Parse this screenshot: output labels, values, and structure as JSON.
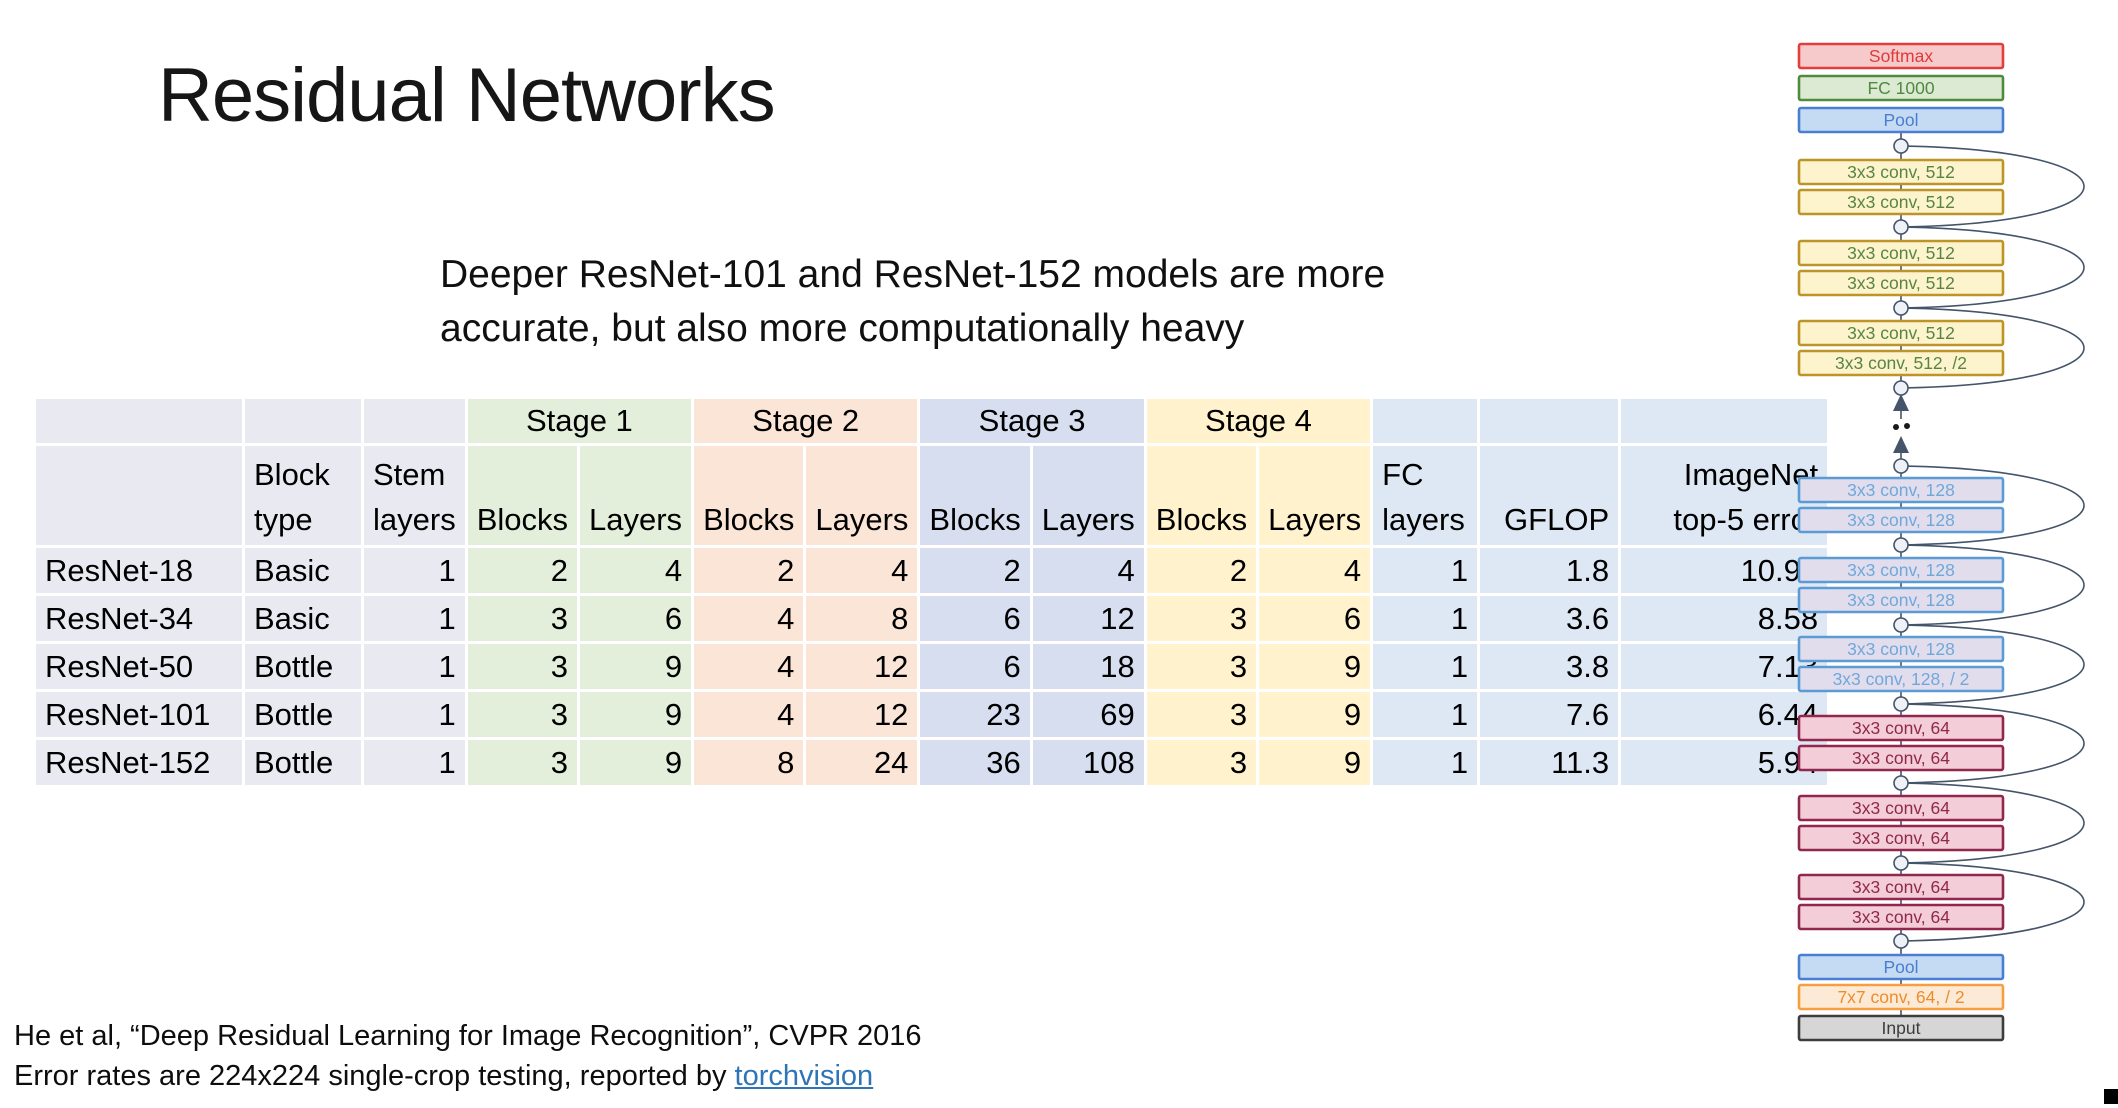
{
  "slide": {
    "title": "Residual Networks",
    "subtitle_line1": "Deeper ResNet-101 and ResNet-152 models are more",
    "subtitle_line2": "accurate, but also more computationally heavy",
    "footer_line1": "He et al, “Deep Residual Learning for Image Recognition”, CVPR 2016",
    "footer_line2_prefix": "Error rates are 224x224 single-crop testing, reported by ",
    "footer_link_label": "torchvision"
  },
  "table": {
    "stage_headers": [
      "Stage 1",
      "Stage 2",
      "Stage 3",
      "Stage 4"
    ],
    "column_headers": [
      "",
      "Block\ntype",
      "Stem\nlayers",
      "Blocks",
      "Layers",
      "Blocks",
      "Layers",
      "Blocks",
      "Layers",
      "Blocks",
      "Layers",
      "FC\nlayers",
      "GFLOP",
      "ImageNet\ntop-5 error"
    ],
    "rows": [
      [
        "ResNet-18",
        "Basic",
        "1",
        "2",
        "4",
        "2",
        "4",
        "2",
        "4",
        "2",
        "4",
        "1",
        "1.8",
        "10.92"
      ],
      [
        "ResNet-34",
        "Basic",
        "1",
        "3",
        "6",
        "4",
        "8",
        "6",
        "12",
        "3",
        "6",
        "1",
        "3.6",
        "8.58"
      ],
      [
        "ResNet-50",
        "Bottle",
        "1",
        "3",
        "9",
        "4",
        "12",
        "6",
        "18",
        "3",
        "9",
        "1",
        "3.8",
        "7.13"
      ],
      [
        "ResNet-101",
        "Bottle",
        "1",
        "3",
        "9",
        "4",
        "12",
        "23",
        "69",
        "3",
        "9",
        "1",
        "7.6",
        "6.44"
      ],
      [
        "ResNet-152",
        "Bottle",
        "1",
        "3",
        "9",
        "8",
        "24",
        "36",
        "108",
        "3",
        "9",
        "1",
        "11.3",
        "5.94"
      ]
    ],
    "colors": {
      "first_columns": "#e9e9f1",
      "stage1": "#e3efda",
      "stage2": "#fbe5d6",
      "stage3": "#d7deef",
      "stage4": "#fff2cc",
      "right_columns": "#dde8f4"
    }
  },
  "diagram": {
    "layers": [
      {
        "label": "Softmax",
        "type": "softmax"
      },
      {
        "label": "FC 1000",
        "type": "fc"
      },
      {
        "label": "Pool",
        "type": "pool"
      },
      {
        "label": "3x3 conv, 512",
        "type": "conv512"
      },
      {
        "label": "3x3 conv, 512",
        "type": "conv512"
      },
      {
        "label": "3x3 conv, 512",
        "type": "conv512"
      },
      {
        "label": "3x3 conv, 512",
        "type": "conv512"
      },
      {
        "label": "3x3 conv, 512",
        "type": "conv512"
      },
      {
        "label": "3x3 conv, 512, /2",
        "type": "conv512"
      },
      {
        "label": "3x3 conv, 128",
        "type": "conv128"
      },
      {
        "label": "3x3 conv, 128",
        "type": "conv128"
      },
      {
        "label": "3x3 conv, 128",
        "type": "conv128"
      },
      {
        "label": "3x3 conv, 128",
        "type": "conv128"
      },
      {
        "label": "3x3 conv, 128",
        "type": "conv128"
      },
      {
        "label": "3x3 conv, 128, / 2",
        "type": "conv128"
      },
      {
        "label": "3x3 conv, 64",
        "type": "conv64"
      },
      {
        "label": "3x3 conv, 64",
        "type": "conv64"
      },
      {
        "label": "3x3 conv, 64",
        "type": "conv64"
      },
      {
        "label": "3x3 conv, 64",
        "type": "conv64"
      },
      {
        "label": "3x3 conv, 64",
        "type": "conv64"
      },
      {
        "label": "3x3 conv, 64",
        "type": "conv64"
      },
      {
        "label": "Pool",
        "type": "pool"
      },
      {
        "label": "7x7 conv, 64, / 2",
        "type": "conv7"
      },
      {
        "label": "Input",
        "type": "input"
      }
    ],
    "palette": {
      "softmax": {
        "fill": "#f6caca",
        "stroke": "#e43d3d",
        "text": "#e03a3a"
      },
      "fc": {
        "fill": "#dcead3",
        "stroke": "#4f8a3f",
        "text": "#4f8a3f"
      },
      "pool": {
        "fill": "#c5daf3",
        "stroke": "#4a7ed2",
        "text": "#4a7ed2"
      },
      "conv512": {
        "fill": "#fdf3cd",
        "stroke": "#bc9428",
        "text": "#588540"
      },
      "conv128": {
        "fill": "#e2ddec",
        "stroke": "#5b9bd5",
        "text": "#6fa8dc"
      },
      "conv64": {
        "fill": "#f3ced9",
        "stroke": "#92274e",
        "text": "#92274e"
      },
      "conv7": {
        "fill": "#fcead6",
        "stroke": "#f69f40",
        "text": "#ef8c2a"
      },
      "input": {
        "fill": "#d6d6d6",
        "stroke": "#3d3d3d",
        "text": "#3d3d3d"
      },
      "wire": "#44546a"
    }
  }
}
